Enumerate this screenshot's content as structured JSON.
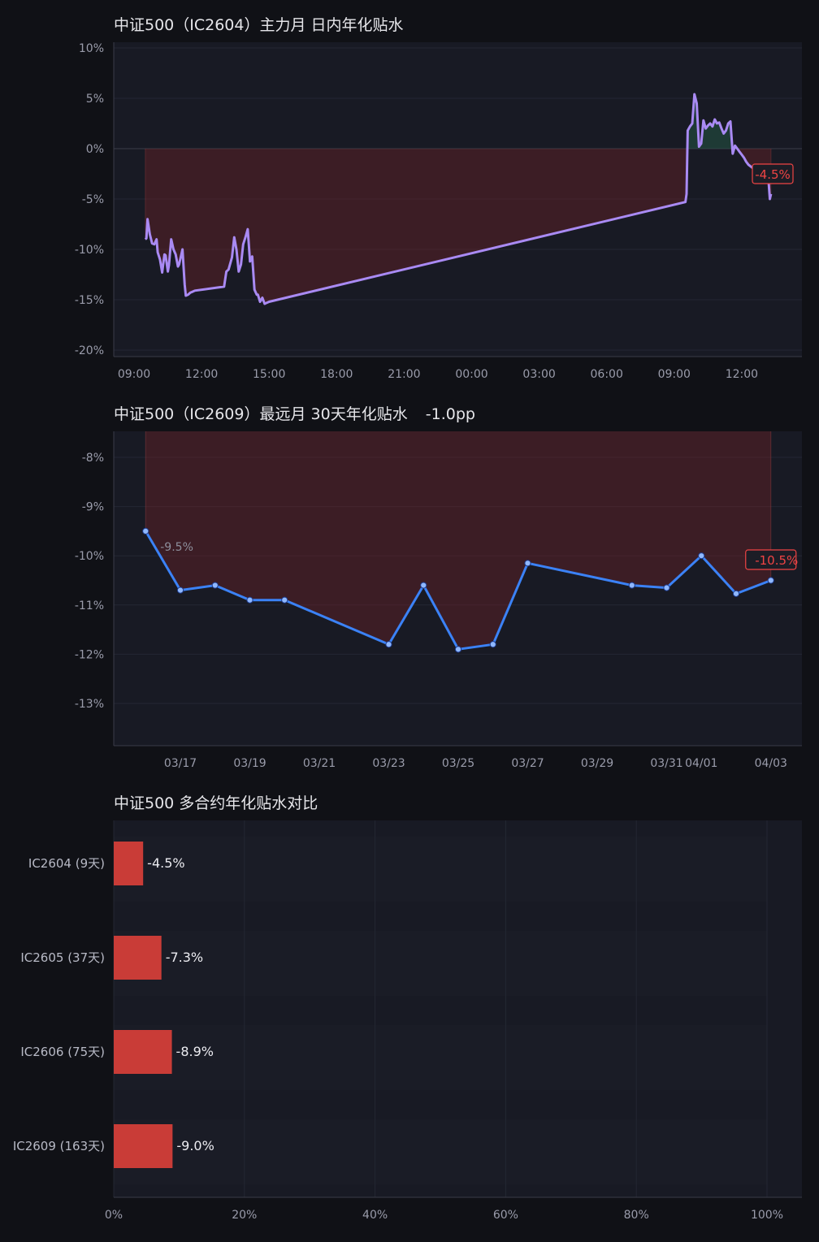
{
  "colors": {
    "background": "#101116",
    "plot_bg": "#181a24",
    "grid": "#242733",
    "axis": "#3a3c48",
    "intraday_line": "#a98af3",
    "monthly_line": "#3b82f6",
    "negative": "#ef4444",
    "bar": "#c93c37",
    "negative_fill": "rgba(120,35,40,0.38)",
    "positive_fill": "rgba(35,90,70,0.5)"
  },
  "chart_data": [
    {
      "type": "area",
      "title": "中证500（IC2604）主力月 日内年化贴水",
      "xlabel": "",
      "ylabel": "",
      "ylim": [
        -20,
        10
      ],
      "yticks": [
        "10%",
        "5%",
        "0%",
        "-5%",
        "-10%",
        "-15%",
        "-20%"
      ],
      "xticks": [
        "09:00",
        "12:00",
        "15:00",
        "18:00",
        "21:00",
        "00:00",
        "03:00",
        "06:00",
        "09:00",
        "12:00"
      ],
      "grid": true,
      "x": [
        9.5,
        9.55,
        9.6,
        9.7,
        9.8,
        9.9,
        10.0,
        10.05,
        10.15,
        10.25,
        10.35,
        10.4,
        10.5,
        10.55,
        10.65,
        10.75,
        10.85,
        10.95,
        11.0,
        11.05,
        11.15,
        11.25,
        11.3,
        11.4,
        11.5,
        11.6,
        11.7,
        13.0,
        13.1,
        13.2,
        13.3,
        13.35,
        13.45,
        13.55,
        13.65,
        13.75,
        13.85,
        13.95,
        14.05,
        14.15,
        14.25,
        14.35,
        14.45,
        14.5,
        14.6,
        14.7,
        14.8,
        14.9,
        15.0,
        33.5,
        33.55,
        33.6,
        33.7,
        33.8,
        33.9,
        34.0,
        34.1,
        34.2,
        34.3,
        34.4,
        34.5,
        34.6,
        34.7,
        34.8,
        34.9,
        35.0,
        35.1,
        35.2,
        35.3,
        35.4,
        35.5,
        35.6,
        35.7,
        35.8,
        35.9,
        36.0,
        36.1,
        36.2,
        36.3,
        37.0,
        37.1,
        37.2,
        37.25,
        37.3
      ],
      "y": [
        -9.0,
        -8.9,
        -7.0,
        -8.5,
        -9.4,
        -9.5,
        -9.0,
        -10.3,
        -11.0,
        -12.3,
        -10.5,
        -10.6,
        -12.2,
        -11.6,
        -9.0,
        -10.0,
        -10.5,
        -11.7,
        -11.5,
        -11.0,
        -10.0,
        -13.5,
        -14.6,
        -14.5,
        -14.3,
        -14.2,
        -14.1,
        -13.7,
        -12.2,
        -12.0,
        -11.2,
        -10.8,
        -8.8,
        -10.0,
        -12.2,
        -11.5,
        -9.5,
        -8.8,
        -8.0,
        -11.2,
        -10.7,
        -14.0,
        -14.5,
        -14.5,
        -15.2,
        -14.8,
        -15.4,
        -15.3,
        -15.2,
        -5.3,
        -4.5,
        1.8,
        2.2,
        2.5,
        5.4,
        4.5,
        0.2,
        0.5,
        2.8,
        2.0,
        2.3,
        2.5,
        2.2,
        2.9,
        2.5,
        2.6,
        2.0,
        1.5,
        1.8,
        2.5,
        2.7,
        -0.5,
        0.3,
        0.0,
        -0.3,
        -0.6,
        -0.9,
        -1.3,
        -1.6,
        -2.8,
        -3.0,
        -3.4,
        -5.0,
        -4.5
      ],
      "last_label": "-4.5%"
    },
    {
      "type": "line",
      "title": "中证500（IC2609）最远月 30天年化贴水",
      "change_label": "-1.0pp",
      "xlabel": "",
      "ylabel": "",
      "ylim": [
        -13.9,
        -7.5
      ],
      "yticks": [
        "-8%",
        "-9%",
        "-10%",
        "-11%",
        "-12%",
        "-13%"
      ],
      "xticks": [
        "03/17",
        "03/19",
        "03/21",
        "03/23",
        "03/25",
        "03/27",
        "03/29",
        "03/31",
        "04/01",
        "04/03"
      ],
      "grid": true,
      "x": [
        "03/16",
        "03/17",
        "03/18",
        "03/19",
        "03/20",
        "03/23",
        "03/24",
        "03/25",
        "03/26",
        "03/27",
        "03/30",
        "03/31",
        "04/01",
        "04/02",
        "04/03"
      ],
      "y": [
        -9.5,
        -10.7,
        -10.6,
        -10.9,
        -10.9,
        -11.8,
        -10.6,
        -11.9,
        -11.8,
        -10.15,
        -10.6,
        -10.65,
        -10.0,
        -10.77,
        -10.5
      ],
      "first_label": "-9.5%",
      "last_label": "-10.5%"
    },
    {
      "type": "bar",
      "orientation": "horizontal",
      "title": "中证500 多合约年化贴水对比",
      "xlabel": "",
      "ylabel": "",
      "xlim": [
        0,
        105
      ],
      "xticks": [
        "0%",
        "20%",
        "40%",
        "60%",
        "80%",
        "100%"
      ],
      "grid": true,
      "categories": [
        "IC2604 (9天)",
        "IC2605 (37天)",
        "IC2606 (75天)",
        "IC2609 (163天)"
      ],
      "values": [
        4.5,
        7.3,
        8.9,
        9.0
      ],
      "labels": [
        "-4.5%",
        "-7.3%",
        "-8.9%",
        "-9.0%"
      ]
    }
  ]
}
